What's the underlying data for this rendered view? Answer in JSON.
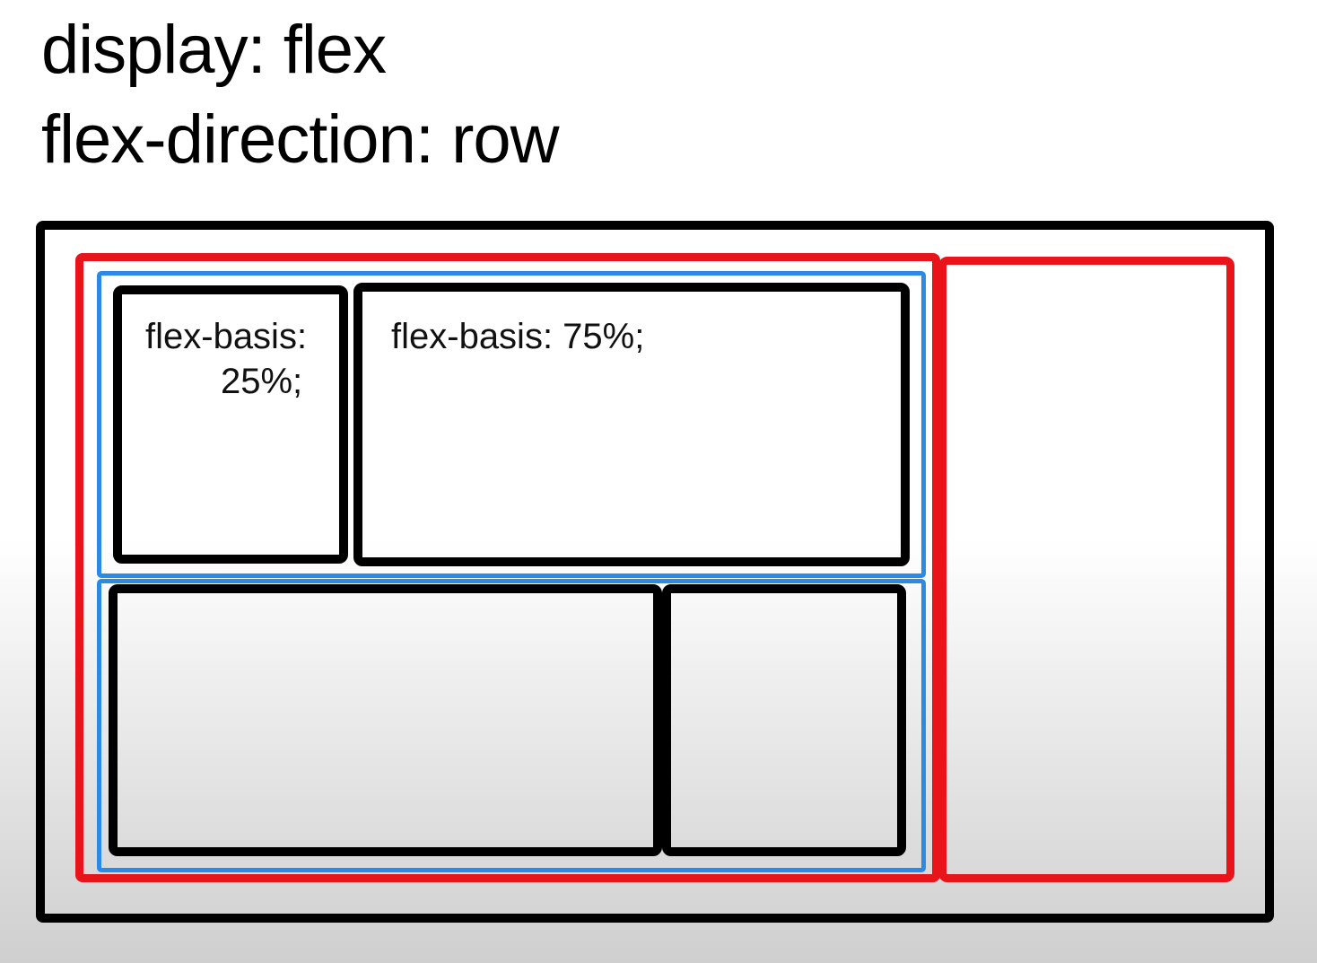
{
  "heading": {
    "line1": "display: flex",
    "line2": "flex-direction: row"
  },
  "items": {
    "a": {
      "label_line1": "flex-basis:",
      "label_line2": "25%;"
    },
    "b": {
      "label": "flex-basis: 75%;"
    }
  },
  "colors": {
    "flex_container": "#000000",
    "column_boxes": "#e8141a",
    "row_boxes": "#2a8ae6",
    "flex_items": "#000000"
  }
}
